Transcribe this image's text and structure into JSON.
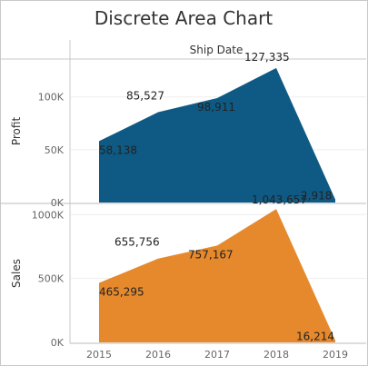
{
  "chart_data": {
    "type": "area",
    "title": "Discrete Area Chart",
    "column_header": "Ship Date",
    "categories": [
      "2015",
      "2016",
      "2017",
      "2018",
      "2019"
    ],
    "panels": [
      {
        "name": "profit",
        "ylabel": "Profit",
        "color": "#0f5a84",
        "ylim": [
          0,
          135000
        ],
        "yticks": [
          0,
          50000,
          100000
        ],
        "ytick_labels": [
          "0K",
          "50K",
          "100K"
        ],
        "values": [
          58138,
          85527,
          98911,
          127335,
          2918
        ],
        "data_labels": [
          "58,138",
          "85,527",
          "98,911",
          "127,335",
          "2,918"
        ]
      },
      {
        "name": "sales",
        "ylabel": "Sales",
        "color": "#e6892c",
        "ylim": [
          0,
          1080000
        ],
        "yticks": [
          0,
          500000,
          1000000
        ],
        "ytick_labels": [
          "0K",
          "500K",
          "1000K"
        ],
        "values": [
          465295,
          655756,
          757167,
          1043657,
          16214
        ],
        "data_labels": [
          "465,295",
          "655,756",
          "757,167",
          "1,043,657",
          "16,214"
        ]
      }
    ]
  }
}
